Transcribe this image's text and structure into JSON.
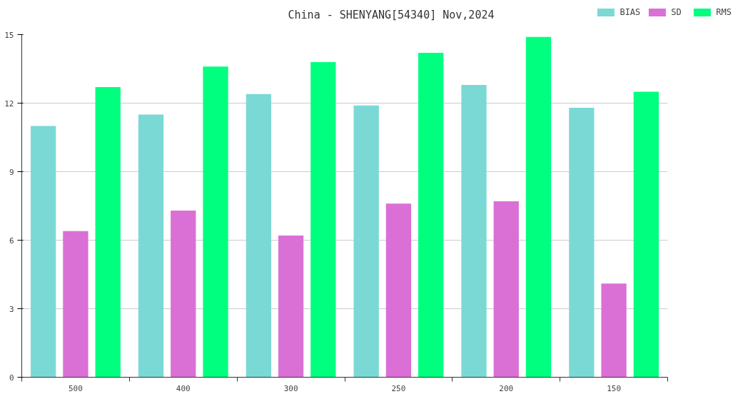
{
  "chart_data": {
    "type": "bar",
    "title": "China - SHENYANG[54340] Nov,2024",
    "categories": [
      "500",
      "400",
      "300",
      "250",
      "200",
      "150"
    ],
    "series": [
      {
        "name": "BIAS",
        "color": "#7bd9d5",
        "values": [
          11.0,
          11.5,
          12.4,
          11.9,
          12.8,
          11.8
        ]
      },
      {
        "name": "SD",
        "color": "#da70d6",
        "values": [
          6.4,
          7.3,
          6.2,
          7.6,
          7.7,
          4.1
        ]
      },
      {
        "name": "RMS",
        "color": "#00ff7f",
        "values": [
          12.7,
          13.6,
          13.8,
          14.2,
          14.9,
          12.5
        ]
      }
    ],
    "ylim": [
      0,
      15
    ],
    "yticks": [
      0,
      3,
      6,
      9,
      12,
      15
    ],
    "grid": "y",
    "legend": "top right"
  }
}
